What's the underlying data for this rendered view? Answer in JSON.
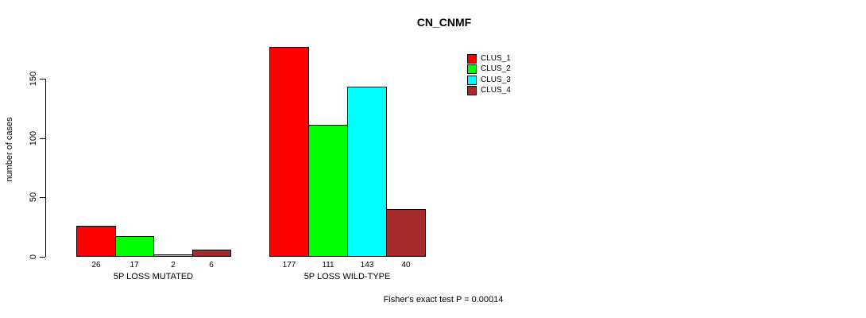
{
  "chart_data": {
    "type": "bar",
    "title": "CN_CNMF",
    "ylabel": "number of cases",
    "xlabel": "",
    "categories": [
      "5P LOSS MUTATED",
      "5P LOSS WILD-TYPE"
    ],
    "series": [
      {
        "name": "CLUS_1",
        "color": "#FF0000",
        "values": [
          26,
          177
        ]
      },
      {
        "name": "CLUS_2",
        "color": "#00FF00",
        "values": [
          17,
          111
        ]
      },
      {
        "name": "CLUS_3",
        "color": "#00FFFF",
        "values": [
          2,
          143
        ]
      },
      {
        "name": "CLUS_4",
        "color": "#A52A2A",
        "values": [
          6,
          40
        ]
      }
    ],
    "bar_value_labels": [
      [
        "26",
        "17",
        "2",
        "6"
      ],
      [
        "177",
        "111",
        "143",
        "40"
      ]
    ],
    "yticks": [
      "0",
      "50",
      "100",
      "150"
    ],
    "ytick_values": [
      0,
      50,
      100,
      150
    ],
    "ylim": [
      0,
      150
    ],
    "grid": false,
    "legend_position": "top-right",
    "legend_entries": [
      "CLUS_1",
      "CLUS_2",
      "CLUS_3",
      "CLUS_4"
    ],
    "annotation": "Fisher's exact test P = 0.00014"
  },
  "colors": {
    "bar_border": "#000000",
    "axis": "#000000",
    "background": "#FFFFFF"
  }
}
